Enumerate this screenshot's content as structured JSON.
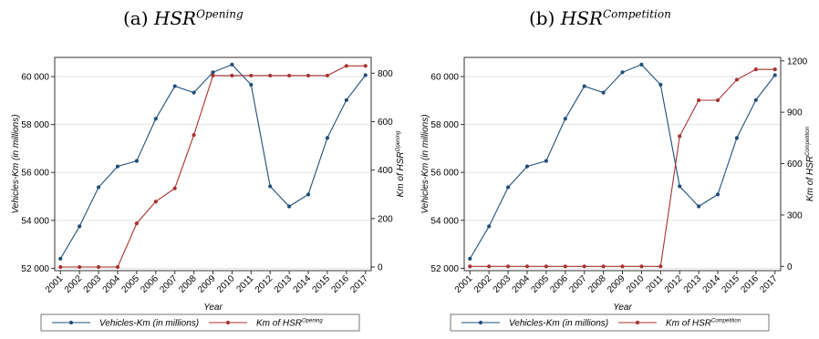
{
  "captions": [
    {
      "prefix": "(a) ",
      "main": "HSR",
      "sup": "Opening"
    },
    {
      "prefix": "(b) ",
      "main": "HSR",
      "sup": "Competition"
    }
  ],
  "chart_data": [
    {
      "type": "line",
      "title": "(a) HSR^Opening",
      "x": [
        2001,
        2002,
        2003,
        2004,
        2005,
        2006,
        2007,
        2008,
        2009,
        2010,
        2011,
        2012,
        2013,
        2014,
        2015,
        2016,
        2017
      ],
      "xlabel": "Year",
      "ylabel_left": "Vehicles-Km (in millions)",
      "ylabel_right": {
        "main": "Km of HSR",
        "sup": "Opening"
      },
      "ylim_left": [
        51900,
        60800
      ],
      "yticks_left": [
        52000,
        54000,
        56000,
        58000,
        60000
      ],
      "ytick_labels_left": [
        "52 000",
        "54 000",
        "56 000",
        "58 000",
        "60 000"
      ],
      "ylim_right": [
        -15,
        865
      ],
      "yticks_right": [
        0,
        200,
        400,
        600,
        800
      ],
      "ytick_labels_right": [
        "0",
        "200",
        "400",
        "600",
        "800"
      ],
      "grid": true,
      "legend_position": "bottom",
      "series": [
        {
          "name": "Vehicles-Km (in millions)",
          "axis": "left",
          "color": "#1f4e79",
          "values": [
            52400,
            53750,
            55380,
            56250,
            56480,
            58240,
            59600,
            59330,
            60180,
            60500,
            59660,
            55420,
            54580,
            55080,
            57440,
            59020,
            60060
          ]
        },
        {
          "name": {
            "main": "Km of HSR",
            "sup": "Opening"
          },
          "axis": "right",
          "color": "#a83232",
          "values": [
            0,
            0,
            0,
            0,
            180,
            270,
            325,
            545,
            790,
            790,
            790,
            790,
            790,
            790,
            790,
            830,
            830
          ]
        }
      ]
    },
    {
      "type": "line",
      "title": "(b) HSR^Competition",
      "x": [
        2001,
        2002,
        2003,
        2004,
        2005,
        2006,
        2007,
        2008,
        2009,
        2010,
        2011,
        2012,
        2013,
        2014,
        2015,
        2016,
        2017
      ],
      "xlabel": "Year",
      "ylabel_left": "Vehicles-Km (in millions)",
      "ylabel_right": {
        "main": "Km of HSR",
        "sup": "Competition"
      },
      "ylim_left": [
        51900,
        60800
      ],
      "yticks_left": [
        52000,
        54000,
        56000,
        58000,
        60000
      ],
      "ytick_labels_left": [
        "52 000",
        "54 000",
        "56 000",
        "58 000",
        "60 000"
      ],
      "ylim_right": [
        -25,
        1220
      ],
      "yticks_right": [
        0,
        300,
        600,
        900,
        1200
      ],
      "ytick_labels_right": [
        "0",
        "300",
        "600",
        "900",
        "1200"
      ],
      "grid": true,
      "legend_position": "bottom",
      "series": [
        {
          "name": "Vehicles-Km (in millions)",
          "axis": "left",
          "color": "#1f4e79",
          "values": [
            52400,
            53750,
            55380,
            56250,
            56480,
            58240,
            59600,
            59330,
            60180,
            60500,
            59660,
            55420,
            54580,
            55080,
            57440,
            59020,
            60060
          ]
        },
        {
          "name": {
            "main": "Km of HSR",
            "sup": "Competition"
          },
          "axis": "right",
          "color": "#a83232",
          "values": [
            0,
            0,
            0,
            0,
            0,
            0,
            0,
            0,
            0,
            0,
            0,
            760,
            970,
            970,
            1090,
            1150,
            1150
          ]
        }
      ]
    }
  ]
}
